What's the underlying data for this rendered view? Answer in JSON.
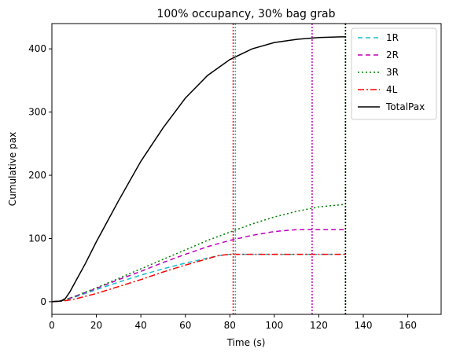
{
  "chart_data": {
    "type": "line",
    "title": "100% occupancy, 30% bag grab",
    "xlabel": "Time (s)",
    "ylabel": "Cumulative pax",
    "xlim": [
      0,
      175
    ],
    "ylim": [
      -20,
      440
    ],
    "xticks": [
      0,
      20,
      40,
      60,
      80,
      100,
      120,
      140,
      160
    ],
    "yticks": [
      0,
      100,
      200,
      300,
      400
    ],
    "grid": false,
    "legend_position": "top-right",
    "series": [
      {
        "name": "1R",
        "color": "#17becf",
        "dash": "6,4",
        "end_time": 82.5,
        "x": [
          0,
          5,
          10,
          20,
          30,
          40,
          50,
          60,
          70,
          75,
          80,
          82.5,
          132
        ],
        "y": [
          0,
          2,
          7,
          19,
          31,
          42,
          52,
          61,
          69,
          73,
          75,
          75,
          75
        ]
      },
      {
        "name": "2R",
        "color": "#bf00bf",
        "dash": "6,4",
        "end_time": 117,
        "x": [
          0,
          5,
          10,
          20,
          30,
          40,
          50,
          60,
          70,
          80,
          90,
          100,
          110,
          117,
          132
        ],
        "y": [
          0,
          2,
          8,
          21,
          35,
          48,
          62,
          75,
          87,
          97,
          105,
          111,
          114,
          114,
          114
        ]
      },
      {
        "name": "3R",
        "color": "#008000",
        "dash": "2,3",
        "end_time": 132,
        "x": [
          0,
          5,
          10,
          20,
          30,
          40,
          50,
          60,
          70,
          80,
          90,
          100,
          110,
          120,
          132
        ],
        "y": [
          0,
          2,
          8,
          22,
          37,
          52,
          67,
          82,
          97,
          110,
          123,
          134,
          143,
          150,
          154
        ]
      },
      {
        "name": "4L",
        "color": "#ff0000",
        "dash": "8,3,2,3",
        "end_time": 81.5,
        "x": [
          0,
          5,
          10,
          20,
          30,
          40,
          50,
          60,
          70,
          75,
          80,
          81.5,
          132
        ],
        "y": [
          0,
          1,
          4,
          13,
          24,
          35,
          47,
          58,
          68,
          73,
          75,
          75,
          75
        ]
      },
      {
        "name": "TotalPax",
        "color": "#000000",
        "dash": "",
        "end_time": 132,
        "x": [
          0,
          4,
          6,
          8,
          10,
          15,
          20,
          30,
          40,
          50,
          60,
          70,
          80,
          90,
          100,
          110,
          120,
          130,
          132
        ],
        "y": [
          0,
          1,
          5,
          15,
          28,
          60,
          95,
          160,
          222,
          275,
          322,
          358,
          383,
          400,
          410,
          415,
          418,
          419,
          419
        ]
      }
    ]
  }
}
